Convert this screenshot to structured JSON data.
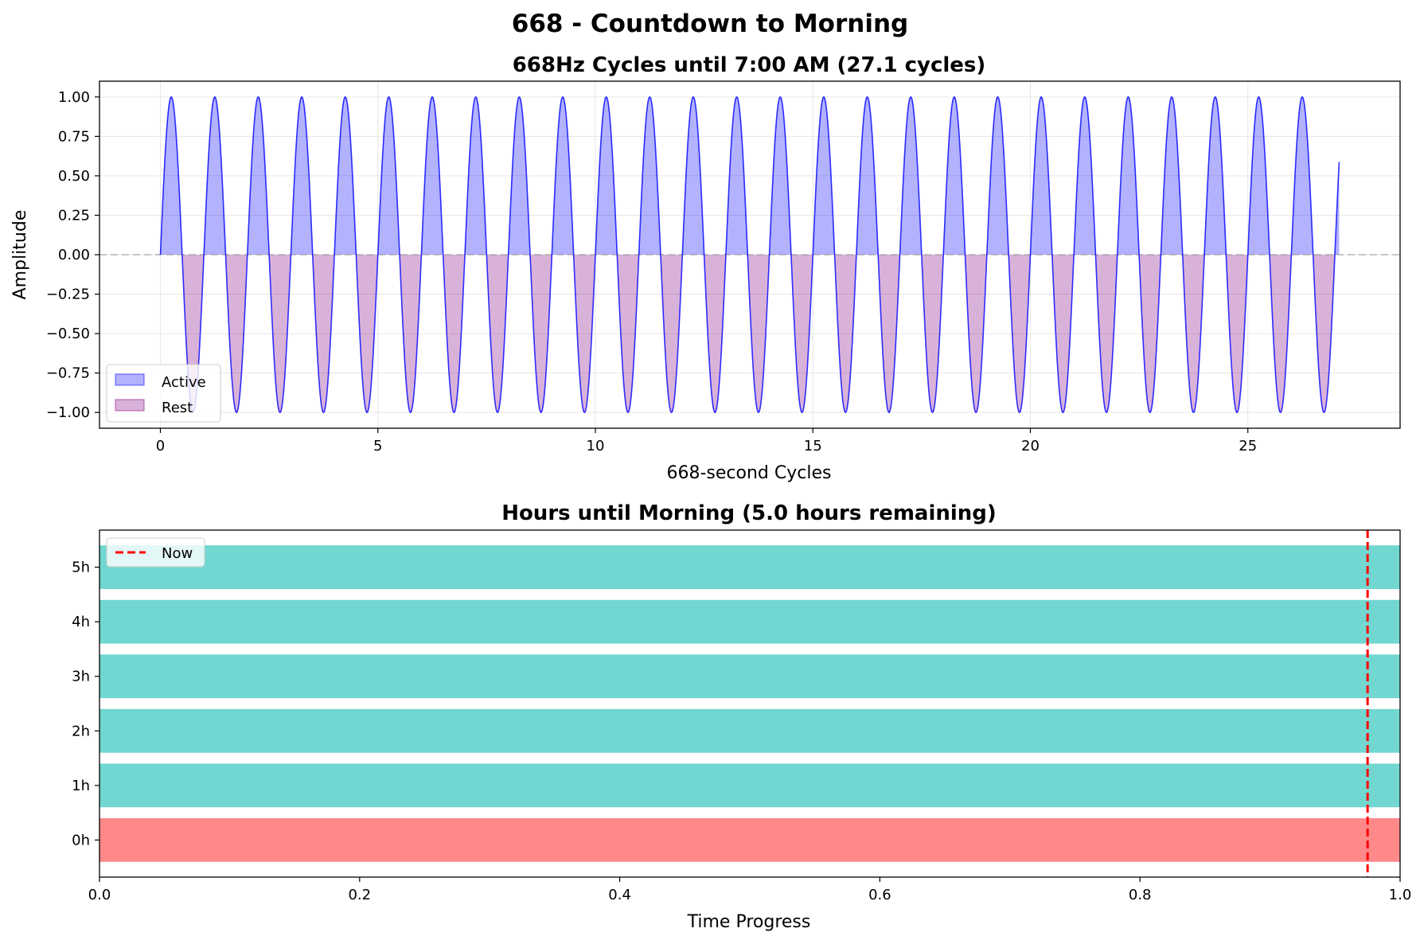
{
  "figure": {
    "title": "668 - Countdown to Morning"
  },
  "chart_data": [
    {
      "type": "area",
      "title": "668Hz Cycles until 7:00 AM (27.1 cycles)",
      "xlabel": "668-second Cycles",
      "ylabel": "Amplitude",
      "xlim": [
        -1.4,
        28.5
      ],
      "ylim": [
        -1.1,
        1.1
      ],
      "xticks": [
        "0",
        "5",
        "10",
        "15",
        "20",
        "25"
      ],
      "xtick_values": [
        0,
        5,
        10,
        15,
        20,
        25
      ],
      "yticks": [
        "1.00",
        "0.75",
        "0.50",
        "0.25",
        "0.00",
        "−0.25",
        "−0.50",
        "−0.75",
        "−1.00"
      ],
      "ytick_values": [
        1.0,
        0.75,
        0.5,
        0.25,
        0.0,
        -0.25,
        -0.5,
        -0.75,
        -1.0
      ],
      "series": [
        {
          "name": "Active",
          "color": "#0000ff",
          "fill_opacity": 0.3,
          "fill_where": "y >= 0"
        },
        {
          "name": "Rest",
          "color": "#800080",
          "fill_opacity": 0.3,
          "fill_where": "y < 0"
        }
      ],
      "signal": {
        "function": "sin(2*pi*x)",
        "x_start": 0,
        "x_end": 27.1,
        "line_color": "#0000ff"
      },
      "reference_line": {
        "y": 0,
        "style": "dashed",
        "color": "#999999"
      },
      "legend_position": "lower-left",
      "grid": true
    },
    {
      "type": "bar",
      "orientation": "horizontal",
      "title": "Hours until Morning (5.0 hours remaining)",
      "xlabel": "Time Progress",
      "ylabel": "",
      "xlim": [
        0.0,
        1.0
      ],
      "xticks": [
        "0.0",
        "0.2",
        "0.4",
        "0.6",
        "0.8",
        "1.0"
      ],
      "xtick_values": [
        0.0,
        0.2,
        0.4,
        0.6,
        0.8,
        1.0
      ],
      "categories": [
        "0h",
        "1h",
        "2h",
        "3h",
        "4h",
        "5h"
      ],
      "values": [
        1.0,
        1.0,
        1.0,
        1.0,
        1.0,
        1.0
      ],
      "colors": [
        "#ff6b6b",
        "#4ecdc4",
        "#4ecdc4",
        "#4ecdc4",
        "#4ecdc4",
        "#4ecdc4"
      ],
      "bar_opacity": 0.8,
      "now_line": {
        "label": "Now",
        "x": 0.975,
        "color": "#ff0000",
        "style": "dashed"
      },
      "legend_position": "upper-left",
      "grid": false
    }
  ]
}
